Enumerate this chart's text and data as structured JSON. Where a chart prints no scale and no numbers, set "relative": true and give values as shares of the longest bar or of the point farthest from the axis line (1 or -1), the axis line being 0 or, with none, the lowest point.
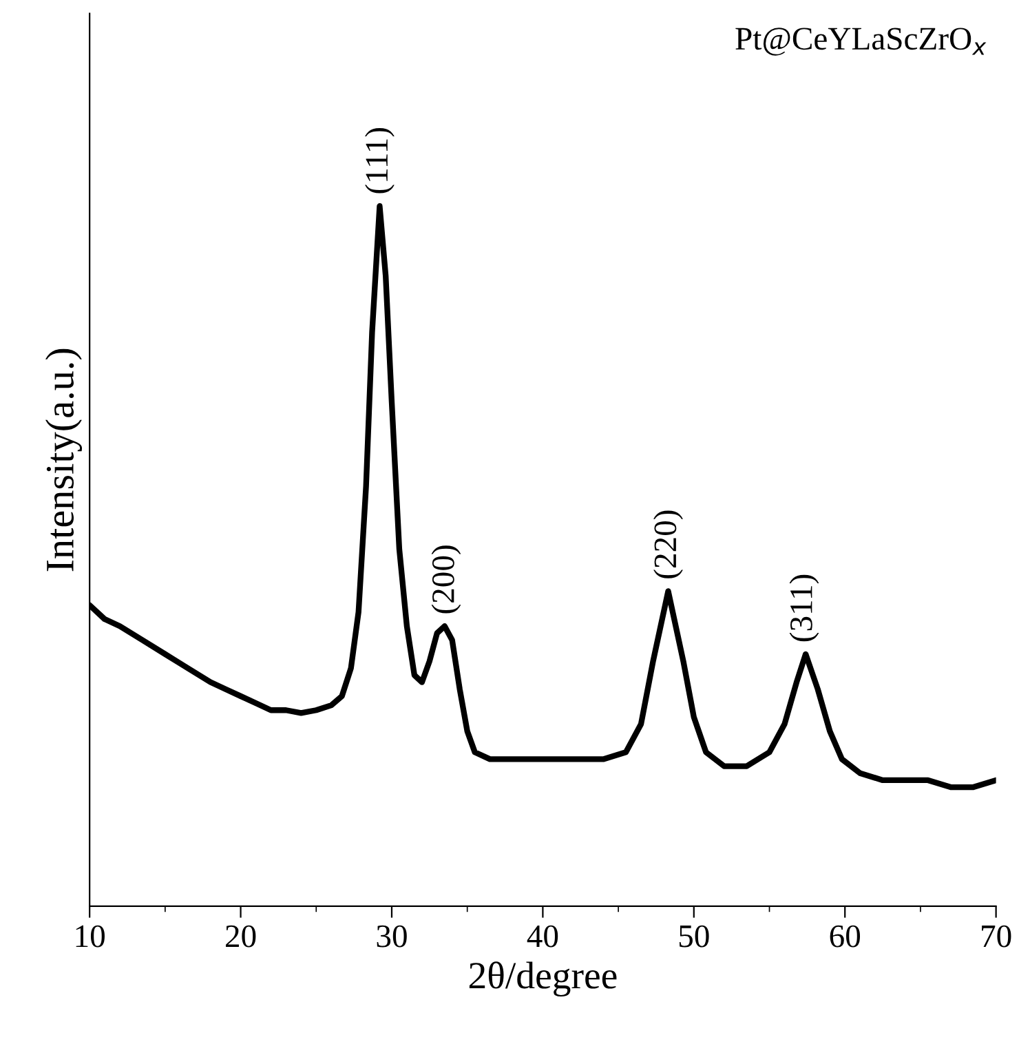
{
  "chart_data": {
    "type": "line",
    "relative": true,
    "xlabel": "2θ/degree",
    "ylabel": "Intensity(a.u.)",
    "xlim": [
      10,
      70
    ],
    "xticks": [
      10,
      20,
      30,
      40,
      50,
      60,
      70
    ],
    "annotations": [
      "Pt@CeYLaScZrO$_{x}$",
      {
        "text": "(111)",
        "x": 29.2,
        "y": 1.0
      },
      {
        "text": "(200)",
        "x": 33.6,
        "y": 0.4
      },
      {
        "text": "(220)",
        "x": 48.3,
        "y": 0.45
      },
      {
        "text": "(311)",
        "x": 57.3,
        "y": 0.36
      }
    ],
    "series": [
      {
        "color": "#000000",
        "x": [
          10,
          11,
          12,
          13.5,
          15,
          16.5,
          18,
          19,
          20,
          21,
          22,
          23,
          24,
          25,
          26,
          26.7,
          27.3,
          27.8,
          28.3,
          28.7,
          29.2,
          29.6,
          30,
          30.5,
          31,
          31.5,
          32,
          32.5,
          33,
          33.5,
          34,
          34.5,
          35,
          35.5,
          36.5,
          38,
          40,
          42,
          44,
          45.5,
          46.5,
          47.3,
          48.3,
          49.3,
          50,
          50.8,
          52,
          53.5,
          55,
          56,
          56.8,
          57.4,
          58.2,
          59,
          59.8,
          61,
          62.5,
          64,
          65.5,
          67,
          68.5,
          70
        ],
        "values": [
          0.43,
          0.41,
          0.4,
          0.38,
          0.36,
          0.34,
          0.32,
          0.31,
          0.3,
          0.29,
          0.28,
          0.28,
          0.276,
          0.28,
          0.287,
          0.3,
          0.34,
          0.42,
          0.6,
          0.82,
          1.0,
          0.9,
          0.72,
          0.51,
          0.4,
          0.33,
          0.32,
          0.35,
          0.39,
          0.4,
          0.38,
          0.31,
          0.25,
          0.22,
          0.21,
          0.21,
          0.21,
          0.21,
          0.21,
          0.22,
          0.26,
          0.35,
          0.45,
          0.35,
          0.27,
          0.22,
          0.2,
          0.2,
          0.22,
          0.26,
          0.32,
          0.36,
          0.31,
          0.25,
          0.21,
          0.19,
          0.18,
          0.18,
          0.18,
          0.17,
          0.17,
          0.18
        ]
      }
    ]
  }
}
